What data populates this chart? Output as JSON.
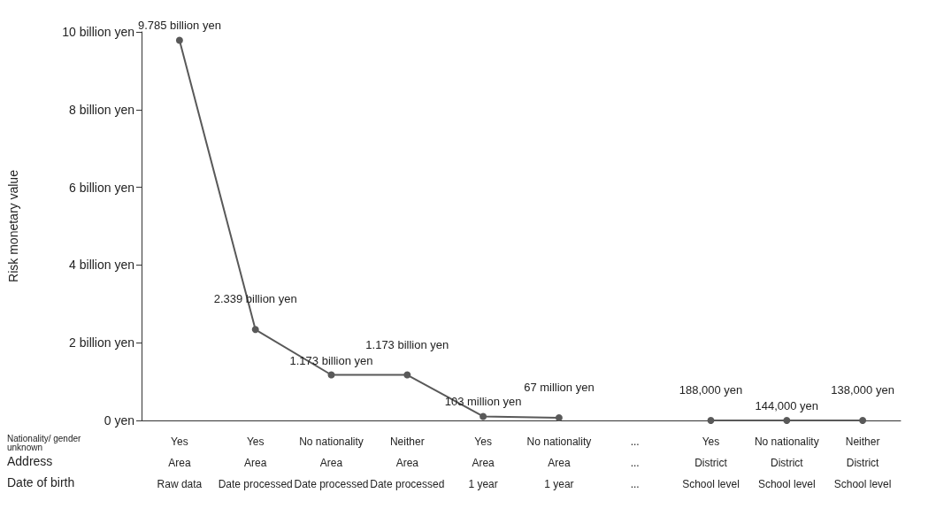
{
  "chart_data": {
    "type": "line",
    "ylabel": "Risk monetary value",
    "categories": [
      "Yes\nArea\nRaw data",
      "Yes\nArea\nDate processed",
      "No nationality\nArea\nDate processed",
      "Neither\nArea\nDate processed",
      "Yes\nArea\n1 year",
      "No nationality\nArea\n1 year",
      "...\n...\n...",
      "Yes\nDistrict\nSchool level",
      "No nationality\nDistrict\nSchool level",
      "Neither\nDistrict\nSchool level"
    ],
    "series": [
      {
        "color": "#595959",
        "values": [
          9785000000,
          2339000000,
          1173000000,
          1173000000,
          103000000,
          67000000,
          null,
          188000,
          144000,
          138000
        ],
        "value_labels": [
          "9.785 billion yen",
          "2.339 billion yen",
          "1.173 billion yen",
          "1.173 billion yen",
          "103 million yen",
          "67 million yen",
          null,
          "188,000 yen",
          "144,000 yen",
          "138,000 yen"
        ]
      }
    ],
    "ylim": [
      0,
      10000000000
    ],
    "yticks": [
      {
        "value": 0,
        "label": "0 yen"
      },
      {
        "value": 2000000000,
        "label": "2 billion yen"
      },
      {
        "value": 4000000000,
        "label": "4 billion yen"
      },
      {
        "value": 6000000000,
        "label": "6 billion yen"
      },
      {
        "value": 8000000000,
        "label": "8 billion yen"
      },
      {
        "value": 10000000000,
        "label": "10 billion yen"
      }
    ],
    "annotations": [
      "Nationality/ gender unknown",
      "Address",
      "Date of birth"
    ],
    "grid": false,
    "marker": "circle",
    "line_style": "solid"
  }
}
